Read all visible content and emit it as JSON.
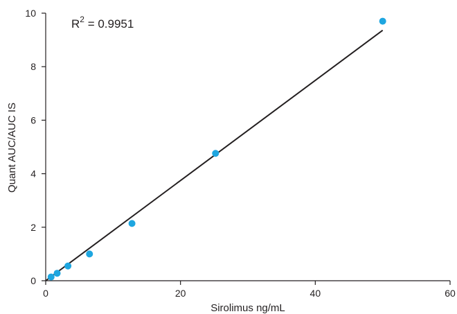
{
  "chart_data": {
    "type": "scatter",
    "xlabel": "Sirolimus ng/mL",
    "ylabel": "Quant AUC/AUC IS",
    "xlim": [
      0,
      60
    ],
    "ylim": [
      0,
      10
    ],
    "xticks": [
      "0",
      "20",
      "40",
      "60"
    ],
    "yticks": [
      "0",
      "2",
      "4",
      "6",
      "8",
      "10"
    ],
    "annotation": {
      "base": "R",
      "sup": "2",
      "rest": " = 0.9951"
    },
    "points": [
      {
        "x": 0.8,
        "y": 0.14
      },
      {
        "x": 1.7,
        "y": 0.28
      },
      {
        "x": 3.3,
        "y": 0.55
      },
      {
        "x": 6.5,
        "y": 1.0
      },
      {
        "x": 12.8,
        "y": 2.14
      },
      {
        "x": 25.2,
        "y": 4.76
      },
      {
        "x": 50.0,
        "y": 9.7
      }
    ],
    "fit_line": {
      "x": [
        0,
        50
      ],
      "y": [
        -0.08,
        9.36
      ]
    },
    "grid": false,
    "colors": {
      "points": "#1ea6e0",
      "line": "#231f20",
      "axis": "#231f20"
    }
  }
}
